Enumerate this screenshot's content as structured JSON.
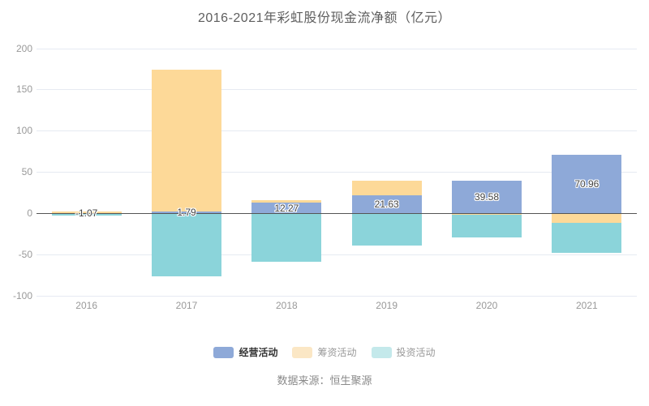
{
  "title": "2016-2021年彩虹股份现金流净额（亿元）",
  "source_note": "数据来源：恒生聚源",
  "colors": {
    "operating_series": "#8EA9D8",
    "financing_series": "#FDD998",
    "investing_series": "#8BD4DA",
    "grid_line": "#E6EAF2",
    "zero_line": "#555555",
    "axis_text": "#999999",
    "title_text": "#5E5E5E",
    "value_label_text": "#444444",
    "source_text": "#8A8A8A"
  },
  "chart_data": {
    "type": "bar",
    "stacked": true,
    "title": "2016-2021年彩虹股份现金流净额（亿元）",
    "unit": "亿元",
    "categories": [
      "2016",
      "2017",
      "2018",
      "2019",
      "2020",
      "2021"
    ],
    "series": [
      {
        "name": "经营活动",
        "color": "#8EA9D8",
        "values": [
          -1.07,
          1.79,
          12.27,
          21.63,
          39.58,
          70.96
        ],
        "data_labels": [
          "-1.07",
          "1.79",
          "12.27",
          "21.63",
          "39.58",
          "70.96"
        ]
      },
      {
        "name": "筹资活动",
        "color": "#FDD998",
        "values": [
          1.6,
          172.3,
          3.0,
          18.0,
          -2.2,
          -11.8
        ],
        "data_labels": null
      },
      {
        "name": "投资活动",
        "color": "#8BD4DA",
        "values": [
          -1.6,
          -76.7,
          -59.5,
          -40.0,
          -27.5,
          -36.7
        ],
        "data_labels": null
      }
    ],
    "ylim": [
      -100,
      200
    ],
    "yticks": [
      200,
      150,
      100,
      50,
      0,
      -50,
      -100
    ],
    "grid": true,
    "legend_position": "bottom"
  },
  "legend": {
    "items": [
      {
        "label": "经营活动",
        "swatch_color": "#8EA9D8",
        "text_color": "#333333",
        "bold": true
      },
      {
        "label": "筹资活动",
        "swatch_color": "#FBE7C5",
        "text_color": "#999999",
        "bold": false
      },
      {
        "label": "投资活动",
        "swatch_color": "#C4E9EB",
        "text_color": "#999999",
        "bold": false
      }
    ]
  }
}
